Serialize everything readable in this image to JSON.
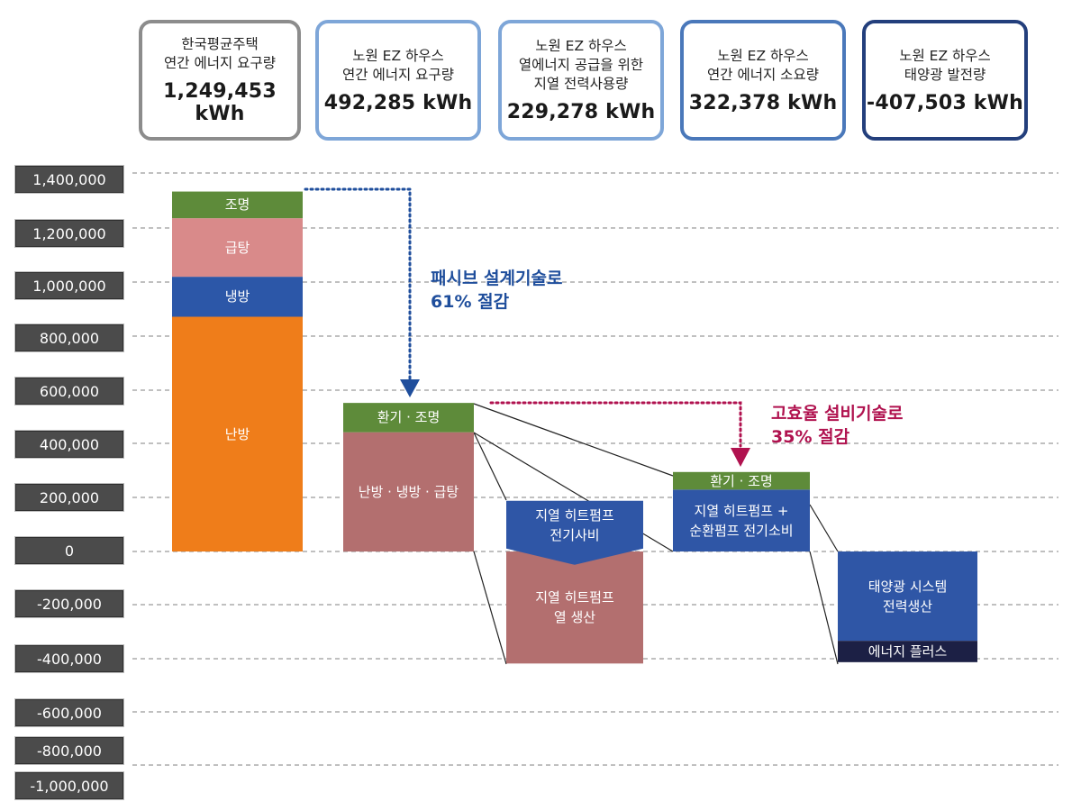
{
  "headers": [
    {
      "text": "한국평균주택\n연간 에너지 요구량",
      "value": "1,249,453 kWh",
      "style": "gray"
    },
    {
      "text": "노원 EZ 하우스\n연간 에너지 요구량",
      "value": "492,285 kWh",
      "style": "lb"
    },
    {
      "text": "노원 EZ 하우스\n열에너지 공급을 위한\n지열 전력사용량",
      "value": "229,278 kWh",
      "style": "lb"
    },
    {
      "text": "노원 EZ 하우스\n연간 에너지 소요량",
      "value": "322,378 kWh",
      "style": "mb"
    },
    {
      "text": "노원 EZ 하우스\n태양광 발전량",
      "value": "-407,503 kWh",
      "style": "db"
    }
  ],
  "annotations": [
    {
      "text": "패시브 설계기술로\n61% 절감",
      "color": "#1f4e9c"
    },
    {
      "text": "고효율 설비기술로\n35% 절감",
      "color": "#b0124f"
    }
  ],
  "colors": {
    "lighting": "#5e8b3a",
    "hot_water": "#d98a8a",
    "cooling": "#2c57a8",
    "heating": "#ef7d1a",
    "combined": "#b36f6f",
    "heatpump": "#2f56a6",
    "solar": "#2f56a6",
    "plus": "#1c2045",
    "grid": "#9a9a9a",
    "passive_arrow": "#1f4e9c",
    "active_arrow": "#b0124f"
  },
  "chart_data": {
    "type": "bar",
    "ylim": [
      -1000000,
      1400000
    ],
    "yticks": [
      {
        "value": 1400000,
        "label": "1,400,000"
      },
      {
        "value": 1200000,
        "label": "1,200,000"
      },
      {
        "value": 1000000,
        "label": "1,000,000"
      },
      {
        "value": 800000,
        "label": "800,000"
      },
      {
        "value": 600000,
        "label": "600,000"
      },
      {
        "value": 400000,
        "label": "400,000"
      },
      {
        "value": 200000,
        "label": "200,000"
      },
      {
        "value": 0,
        "label": "0"
      },
      {
        "value": -200000,
        "label": "-200,000"
      },
      {
        "value": -400000,
        "label": "-400,000"
      },
      {
        "value": -600000,
        "label": "-600,000"
      },
      {
        "value": -800000,
        "label": "-800,000"
      },
      {
        "value": -1000000,
        "label": "-1,000,000"
      }
    ],
    "bars": [
      {
        "segments": [
          {
            "label": "난방",
            "from": 0,
            "to": 880000,
            "color_key": "heating"
          },
          {
            "label": "냉방",
            "from": 880000,
            "to": 1030000,
            "color_key": "cooling"
          },
          {
            "label": "급탕",
            "from": 1030000,
            "to": 1249453,
            "color_key": "hot_water"
          },
          {
            "label": "조명",
            "from": 1249453,
            "to": 1349453,
            "color_key": "lighting"
          }
        ]
      },
      {
        "segments": [
          {
            "label": "난방 · 냉방 · 급탕",
            "from": 0,
            "to": 447000,
            "color_key": "combined"
          },
          {
            "label": "환기 · 조명",
            "from": 447000,
            "to": 557000,
            "color_key": "lighting"
          }
        ]
      },
      {
        "segments": [
          {
            "label": "지열 히트펌프\n열 생산",
            "from": -420000,
            "to": 0,
            "color_key": "combined"
          },
          {
            "label": "지열 히트펌프\n전기사비",
            "from": -50000,
            "to": 190000,
            "color_key": "heatpump",
            "notch": true
          }
        ]
      },
      {
        "segments": [
          {
            "label": "지열 히트펌프 +\n순환펌프 전기소비",
            "from": 0,
            "to": 232000,
            "color_key": "heatpump"
          },
          {
            "label": "환기 · 조명",
            "from": 232000,
            "to": 298000,
            "color_key": "lighting"
          }
        ]
      },
      {
        "segments": [
          {
            "label": "태양광 시스템\n전력생산",
            "from": -335000,
            "to": 0,
            "color_key": "solar"
          },
          {
            "label": "에너지 플러스",
            "from": -415000,
            "to": -335000,
            "color_key": "plus"
          }
        ]
      }
    ]
  }
}
